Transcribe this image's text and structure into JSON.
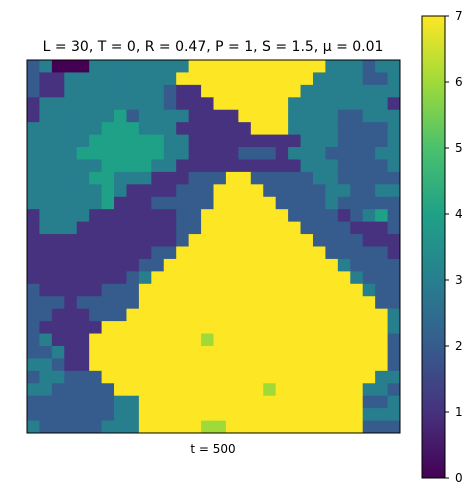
{
  "chart_data": {
    "type": "heatmap",
    "title": "L = 30, T = 0, R = 0.47, P = 1, S = 1.5, μ = 0.01",
    "xlabel": "t = 500",
    "grid_rows": 30,
    "grid_cols": 30,
    "colormap": "viridis",
    "colorbar": {
      "min": 0,
      "max": 7,
      "ticks": [
        "0",
        "1",
        "2",
        "3",
        "4",
        "5",
        "6",
        "7"
      ]
    },
    "legend": {
      "0": "#440154",
      "1": "#46327e",
      "2": "#365c8d",
      "3": "#277f8e",
      "4": "#1fa187",
      "5": "#4ac16d",
      "6": "#a0da39",
      "7": "#fde725"
    },
    "grid": [
      "230003333333377777777777333233",
      "211333333333777777777773333223",
      "211333333332117777777733333333",
      "133333333332111777777333333331",
      "133333342333311117777333322333",
      "333333444333111111777333322223",
      "333334444443311111111133322223",
      "333344444443311112221333222233",
      "333333444433111111111133322223",
      "333334433311122277222223322222",
      "333333431111222777722222332233",
      "333333411122222777772222322222",
      "133331111111227777777222212342",
      "133311111111227777777722221112",
      "111111111111277777777772222111",
      "111111111122777777777777222221",
      "111111111227777777777777732222",
      "111111112377777777777777773222",
      "211111222777777777777777777322",
      "222122222777777777777777777722",
      "221112227777777777777777777773",
      "211111777777777777777777777773",
      "231117777777776777777777777772",
      "223117777777777777777777777772",
      "332117777777777777777777777772",
      "233222777777777777777777777733",
      "332222277777777777767777777332",
      "222222233777777777777777777223",
      "222222233777777777777777777333",
      "322222333777776677777777777222"
    ]
  }
}
